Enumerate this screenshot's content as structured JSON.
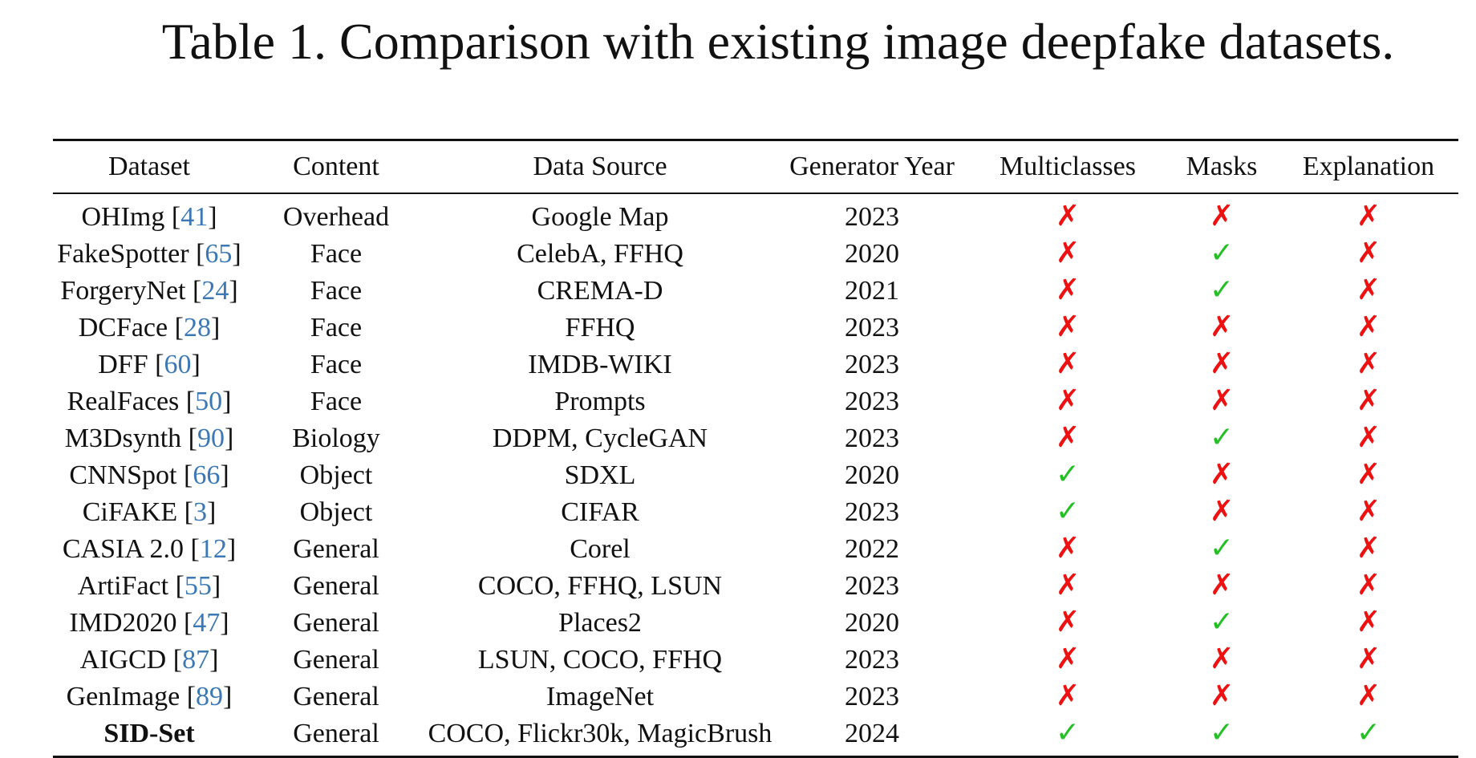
{
  "caption": "Table 1. Comparison with existing image deepfake datasets.",
  "columns": [
    "Dataset",
    "Content",
    "Data Source",
    "Generator Year",
    "Multiclasses",
    "Masks",
    "Explanation"
  ],
  "marks": {
    "yes": "✓",
    "no": "✗"
  },
  "colors": {
    "ref": "#3b78b5",
    "yes": "#22c022",
    "no": "#ee1111"
  },
  "rows": [
    {
      "name": "OHImg",
      "ref": "41",
      "content": "Overhead",
      "source": "Google Map",
      "year": "2023",
      "multiclasses": false,
      "masks": false,
      "explanation": false
    },
    {
      "name": "FakeSpotter",
      "ref": "65",
      "content": "Face",
      "source": "CelebA, FFHQ",
      "year": "2020",
      "multiclasses": false,
      "masks": true,
      "explanation": false
    },
    {
      "name": "ForgeryNet",
      "ref": "24",
      "content": "Face",
      "source": "CREMA-D",
      "year": "2021",
      "multiclasses": false,
      "masks": true,
      "explanation": false
    },
    {
      "name": "DCFace",
      "ref": "28",
      "content": "Face",
      "source": "FFHQ",
      "year": "2023",
      "multiclasses": false,
      "masks": false,
      "explanation": false
    },
    {
      "name": "DFF",
      "ref": "60",
      "content": "Face",
      "source": "IMDB-WIKI",
      "year": "2023",
      "multiclasses": false,
      "masks": false,
      "explanation": false
    },
    {
      "name": "RealFaces",
      "ref": "50",
      "content": "Face",
      "source": "Prompts",
      "year": "2023",
      "multiclasses": false,
      "masks": false,
      "explanation": false
    },
    {
      "name": "M3Dsynth",
      "ref": "90",
      "content": "Biology",
      "source": "DDPM, CycleGAN",
      "year": "2023",
      "multiclasses": false,
      "masks": true,
      "explanation": false
    },
    {
      "name": "CNNSpot",
      "ref": "66",
      "content": "Object",
      "source": "SDXL",
      "year": "2020",
      "multiclasses": true,
      "masks": false,
      "explanation": false
    },
    {
      "name": "CiFAKE",
      "ref": "3",
      "content": "Object",
      "source": "CIFAR",
      "year": "2023",
      "multiclasses": true,
      "masks": false,
      "explanation": false
    },
    {
      "name": "CASIA 2.0",
      "ref": "12",
      "content": "General",
      "source": "Corel",
      "year": "2022",
      "multiclasses": false,
      "masks": true,
      "explanation": false
    },
    {
      "name": "ArtiFact",
      "ref": "55",
      "content": "General",
      "source": "COCO, FFHQ, LSUN",
      "year": "2023",
      "multiclasses": false,
      "masks": false,
      "explanation": false
    },
    {
      "name": "IMD2020",
      "ref": "47",
      "content": "General",
      "source": "Places2",
      "year": "2020",
      "multiclasses": false,
      "masks": true,
      "explanation": false
    },
    {
      "name": "AIGCD",
      "ref": "87",
      "content": "General",
      "source": "LSUN, COCO, FFHQ",
      "year": "2023",
      "multiclasses": false,
      "masks": false,
      "explanation": false
    },
    {
      "name": "GenImage",
      "ref": "89",
      "content": "General",
      "source": "ImageNet",
      "year": "2023",
      "multiclasses": false,
      "masks": false,
      "explanation": false
    },
    {
      "name": "SID-Set",
      "ref": null,
      "bold": true,
      "content": "General",
      "source": "COCO, Flickr30k, MagicBrush",
      "year": "2024",
      "multiclasses": true,
      "masks": true,
      "explanation": true
    }
  ]
}
